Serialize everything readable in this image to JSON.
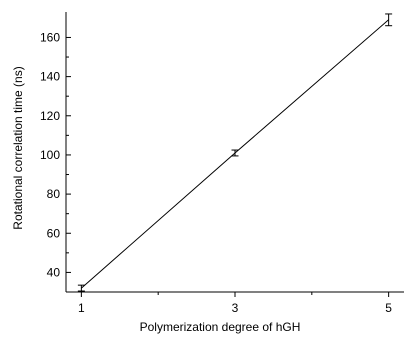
{
  "chart_data": {
    "type": "line",
    "title": "",
    "xlabel": "Polymerization degree of hGH",
    "ylabel": "Rotational correlation time (ns)",
    "xlim": [
      0.8,
      5.2
    ],
    "ylim": [
      30,
      173
    ],
    "xticks": [
      1,
      3,
      5
    ],
    "yticks": [
      40,
      60,
      80,
      100,
      120,
      140,
      160
    ],
    "grid": false,
    "series": [
      {
        "x": [
          1,
          3,
          5
        ],
        "y": [
          32,
          101,
          169
        ],
        "yerr": [
          1.5,
          1.5,
          3
        ]
      }
    ],
    "colors": {
      "line": "#000000",
      "axis": "#000000"
    }
  }
}
